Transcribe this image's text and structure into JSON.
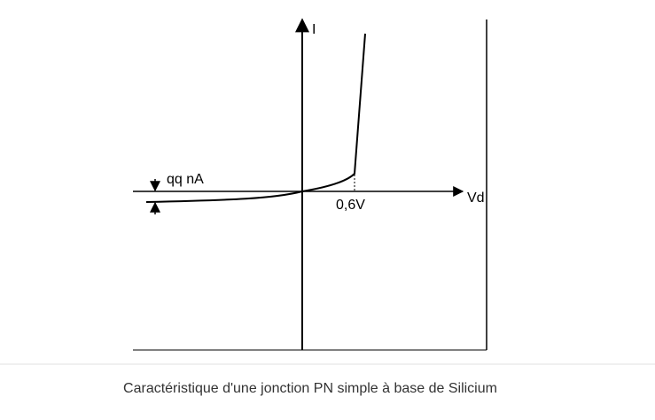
{
  "diagram": {
    "y_axis_label": "I",
    "x_axis_label": "Vd",
    "reverse_current_label": "qq nA",
    "threshold_label": "0,6V"
  },
  "caption": "Caractéristique d'une jonction PN simple à base de Silicium"
}
